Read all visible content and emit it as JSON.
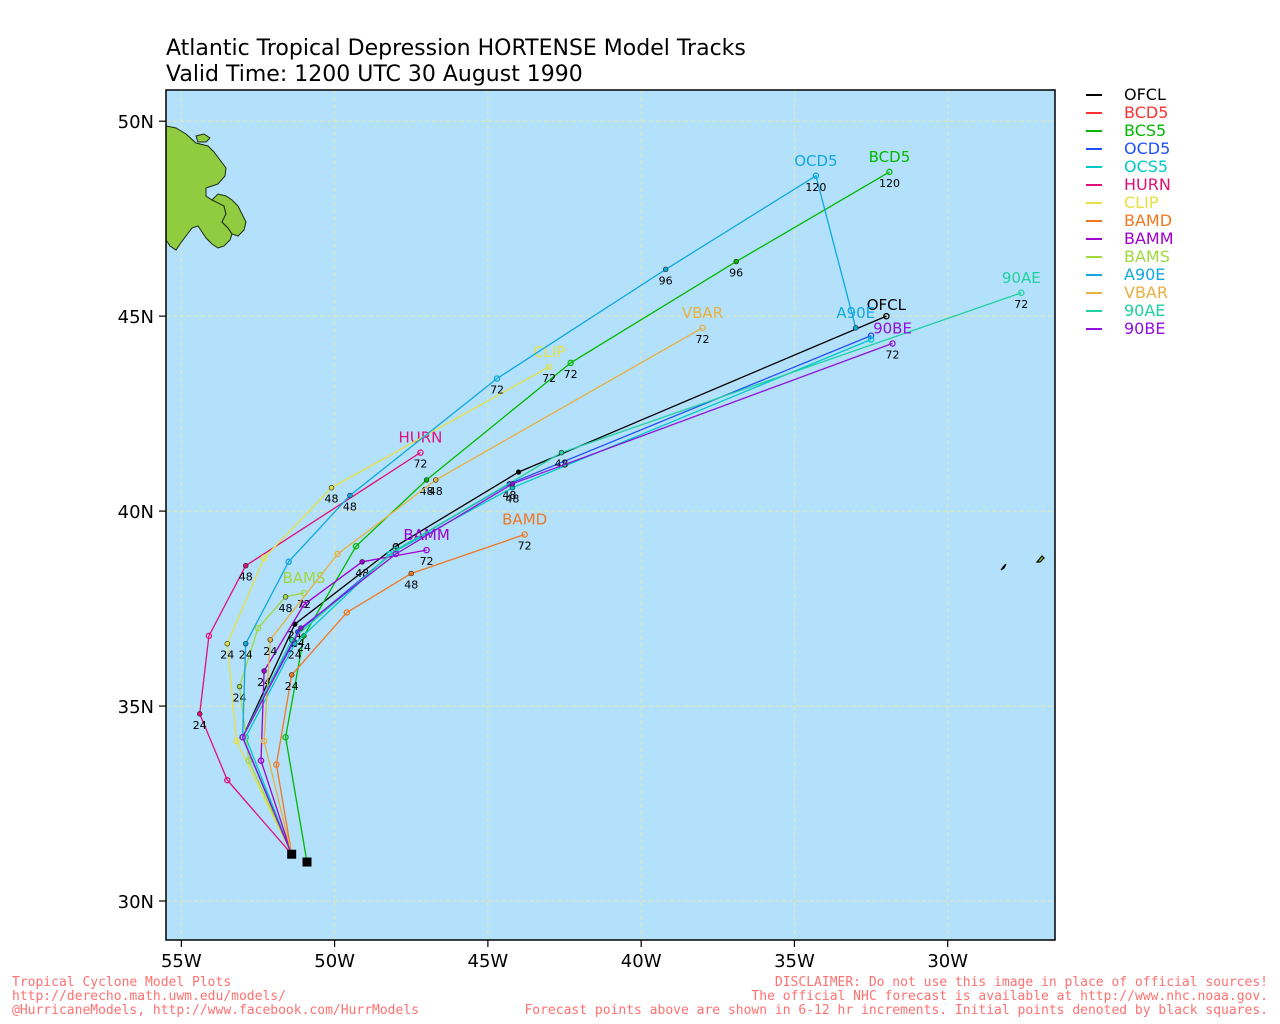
{
  "title": {
    "line1": "Atlantic Tropical Depression HORTENSE Model Tracks",
    "line2": "Valid Time: 1200 UTC 30 August 1990"
  },
  "map": {
    "lon_range": [
      -55.5,
      -26.5
    ],
    "lat_range": [
      29,
      50.8
    ],
    "ocean_color": "#b3e0fb",
    "grid_color": "#e0e9b0",
    "land_color": "#8fcc40",
    "x_ticks": [
      {
        "lon": -55,
        "label": "55W"
      },
      {
        "lon": -50,
        "label": "50W"
      },
      {
        "lon": -45,
        "label": "45W"
      },
      {
        "lon": -40,
        "label": "40W"
      },
      {
        "lon": -35,
        "label": "35W"
      },
      {
        "lon": -30,
        "label": "30W"
      }
    ],
    "y_ticks": [
      {
        "lat": 30,
        "label": "30N"
      },
      {
        "lat": 35,
        "label": "35N"
      },
      {
        "lat": 40,
        "label": "40N"
      },
      {
        "lat": 45,
        "label": "45N"
      },
      {
        "lat": 50,
        "label": "50N"
      }
    ]
  },
  "initial_points": [
    {
      "lon": -51.4,
      "lat": 31.2
    },
    {
      "lon": -50.9,
      "lat": 31.0
    }
  ],
  "tracks": [
    {
      "name": "OFCL",
      "color": "#000000",
      "points": [
        {
          "lon": -51.4,
          "lat": 31.2
        },
        {
          "lon": -53.0,
          "lat": 34.2
        },
        {
          "lon": -51.3,
          "lat": 37.1,
          "hour": "24"
        },
        {
          "lon": -48.0,
          "lat": 39.1
        },
        {
          "lon": -44.0,
          "lat": 41.0
        },
        {
          "lon": -32.0,
          "lat": 45.0
        }
      ]
    },
    {
      "name": "BCD5",
      "color": "#ff3030",
      "points": []
    },
    {
      "name": "BCS5",
      "color": "#00b800",
      "points": [
        {
          "lon": -50.9,
          "lat": 31.0
        },
        {
          "lon": -51.6,
          "lat": 34.2
        },
        {
          "lon": -51.0,
          "lat": 36.8,
          "hour": "24"
        },
        {
          "lon": -49.3,
          "lat": 39.1
        },
        {
          "lon": -47.0,
          "lat": 40.8,
          "hour": "48"
        },
        {
          "lon": -42.3,
          "lat": 43.8,
          "hour": "72"
        },
        {
          "lon": -36.9,
          "lat": 46.4,
          "hour": "96"
        },
        {
          "lon": -31.9,
          "lat": 48.7,
          "hour": "120",
          "label": "BCD5"
        }
      ]
    },
    {
      "name": "OCD5",
      "color": "#2050ff",
      "points": [
        {
          "lon": -51.4,
          "lat": 31.2
        },
        {
          "lon": -53.0,
          "lat": 34.2
        },
        {
          "lon": -51.2,
          "lat": 36.9,
          "hour": "24"
        },
        {
          "lon": -48.0,
          "lat": 39.0
        },
        {
          "lon": -44.3,
          "lat": 40.7,
          "hour": "48"
        },
        {
          "lon": -32.5,
          "lat": 44.5
        }
      ]
    },
    {
      "name": "OCS5",
      "color": "#00c8c8",
      "points": [
        {
          "lon": -51.4,
          "lat": 31.2
        },
        {
          "lon": -52.9,
          "lat": 34.2
        },
        {
          "lon": -51.3,
          "lat": 36.6,
          "hour": "24"
        },
        {
          "lon": -48.2,
          "lat": 38.9
        },
        {
          "lon": -44.2,
          "lat": 40.6,
          "hour": "48"
        },
        {
          "lon": -32.5,
          "lat": 44.4
        }
      ]
    },
    {
      "name": "HURN",
      "color": "#e0107a",
      "points": [
        {
          "lon": -51.4,
          "lat": 31.2
        },
        {
          "lon": -53.5,
          "lat": 33.1
        },
        {
          "lon": -54.4,
          "lat": 34.8,
          "hour": "24"
        },
        {
          "lon": -54.1,
          "lat": 36.8
        },
        {
          "lon": -52.9,
          "lat": 38.6,
          "hour": "48"
        },
        {
          "lon": -47.2,
          "lat": 41.5,
          "hour": "72",
          "label": "HURN"
        }
      ]
    },
    {
      "name": "CLIP",
      "color": "#e8e040",
      "points": [
        {
          "lon": -51.4,
          "lat": 31.2
        },
        {
          "lon": -53.2,
          "lat": 34.1
        },
        {
          "lon": -53.5,
          "lat": 36.6,
          "hour": "24"
        },
        {
          "lon": -52.3,
          "lat": 38.8
        },
        {
          "lon": -50.1,
          "lat": 40.6,
          "hour": "48"
        },
        {
          "lon": -43.0,
          "lat": 43.7,
          "hour": "72",
          "label": "CLIP"
        }
      ]
    },
    {
      "name": "BAMD",
      "color": "#f07820",
      "points": [
        {
          "lon": -51.4,
          "lat": 31.2
        },
        {
          "lon": -51.9,
          "lat": 33.5
        },
        {
          "lon": -51.4,
          "lat": 35.8,
          "hour": "24"
        },
        {
          "lon": -49.6,
          "lat": 37.4
        },
        {
          "lon": -47.5,
          "lat": 38.4,
          "hour": "48"
        },
        {
          "lon": -43.8,
          "lat": 39.4,
          "hour": "72",
          "label": "BAMD"
        }
      ]
    },
    {
      "name": "BAMM",
      "color": "#a000d0",
      "points": [
        {
          "lon": -51.4,
          "lat": 31.2
        },
        {
          "lon": -52.4,
          "lat": 33.6
        },
        {
          "lon": -52.3,
          "lat": 35.9,
          "hour": "24"
        },
        {
          "lon": -51.0,
          "lat": 37.6
        },
        {
          "lon": -49.1,
          "lat": 38.7,
          "hour": "48"
        },
        {
          "lon": -47.0,
          "lat": 39.0,
          "hour": "72",
          "label": "BAMM"
        }
      ]
    },
    {
      "name": "BAMS",
      "color": "#a0d840",
      "points": [
        {
          "lon": -51.4,
          "lat": 31.2
        },
        {
          "lon": -52.8,
          "lat": 33.6
        },
        {
          "lon": -53.1,
          "lat": 35.5,
          "hour": "24"
        },
        {
          "lon": -52.5,
          "lat": 37.0
        },
        {
          "lon": -51.6,
          "lat": 37.8,
          "hour": "48"
        },
        {
          "lon": -51.0,
          "lat": 37.9,
          "hour": "72",
          "label": "BAMS"
        }
      ]
    },
    {
      "name": "A90E",
      "color": "#10a8e0",
      "points": [
        {
          "lon": -51.4,
          "lat": 31.2
        },
        {
          "lon": -53.0,
          "lat": 34.2
        },
        {
          "lon": -52.9,
          "lat": 36.6,
          "hour": "24"
        },
        {
          "lon": -51.5,
          "lat": 38.7
        },
        {
          "lon": -49.5,
          "lat": 40.4,
          "hour": "48"
        },
        {
          "lon": -44.7,
          "lat": 43.4,
          "hour": "72"
        },
        {
          "lon": -39.2,
          "lat": 46.2,
          "hour": "96"
        },
        {
          "lon": -34.3,
          "lat": 48.6,
          "hour": "120",
          "label": "OCD5"
        },
        {
          "lon": -33.0,
          "lat": 44.7,
          "label": "A90E"
        }
      ]
    },
    {
      "name": "VBAR",
      "color": "#e8b040",
      "points": [
        {
          "lon": -51.4,
          "lat": 31.2
        },
        {
          "lon": -52.3,
          "lat": 34.1
        },
        {
          "lon": -52.1,
          "lat": 36.7,
          "hour": "24"
        },
        {
          "lon": -49.9,
          "lat": 38.9
        },
        {
          "lon": -46.7,
          "lat": 40.8,
          "hour": "48"
        },
        {
          "lon": -38.0,
          "lat": 44.7,
          "hour": "72",
          "label": "VBAR"
        }
      ]
    },
    {
      "name": "90AE",
      "color": "#20d0a0",
      "points": [
        {
          "lon": -51.4,
          "lat": 31.2
        },
        {
          "lon": -53.0,
          "lat": 34.2
        },
        {
          "lon": -51.4,
          "lat": 36.7
        },
        {
          "lon": -48.0,
          "lat": 39.0
        },
        {
          "lon": -42.6,
          "lat": 41.5,
          "hour": "48"
        },
        {
          "lon": -27.6,
          "lat": 45.6,
          "hour": "72",
          "label": "90AE"
        }
      ]
    },
    {
      "name": "90BE",
      "color": "#9010e0",
      "points": [
        {
          "lon": -51.4,
          "lat": 31.2
        },
        {
          "lon": -53.0,
          "lat": 34.2
        },
        {
          "lon": -51.1,
          "lat": 37.0
        },
        {
          "lon": -48.0,
          "lat": 38.9
        },
        {
          "lon": -44.2,
          "lat": 40.7
        },
        {
          "lon": -31.8,
          "lat": 44.3,
          "hour": "72",
          "label": "90BE"
        }
      ]
    }
  ],
  "footer": {
    "left_line1": "Tropical Cyclone Model Plots",
    "left_line2": "http://derecho.math.uwm.edu/models/",
    "left_line3": "@HurricaneModels, http://www.facebook.com/HurrModels",
    "right_line1": "DISCLAIMER: Do not use this image in place of official sources!",
    "right_line2": "The official NHC forecast is available at http://www.nhc.noaa.gov.",
    "right_line3": "Forecast points above are shown in 6-12 hr increments. Initial points denoted by black squares."
  }
}
